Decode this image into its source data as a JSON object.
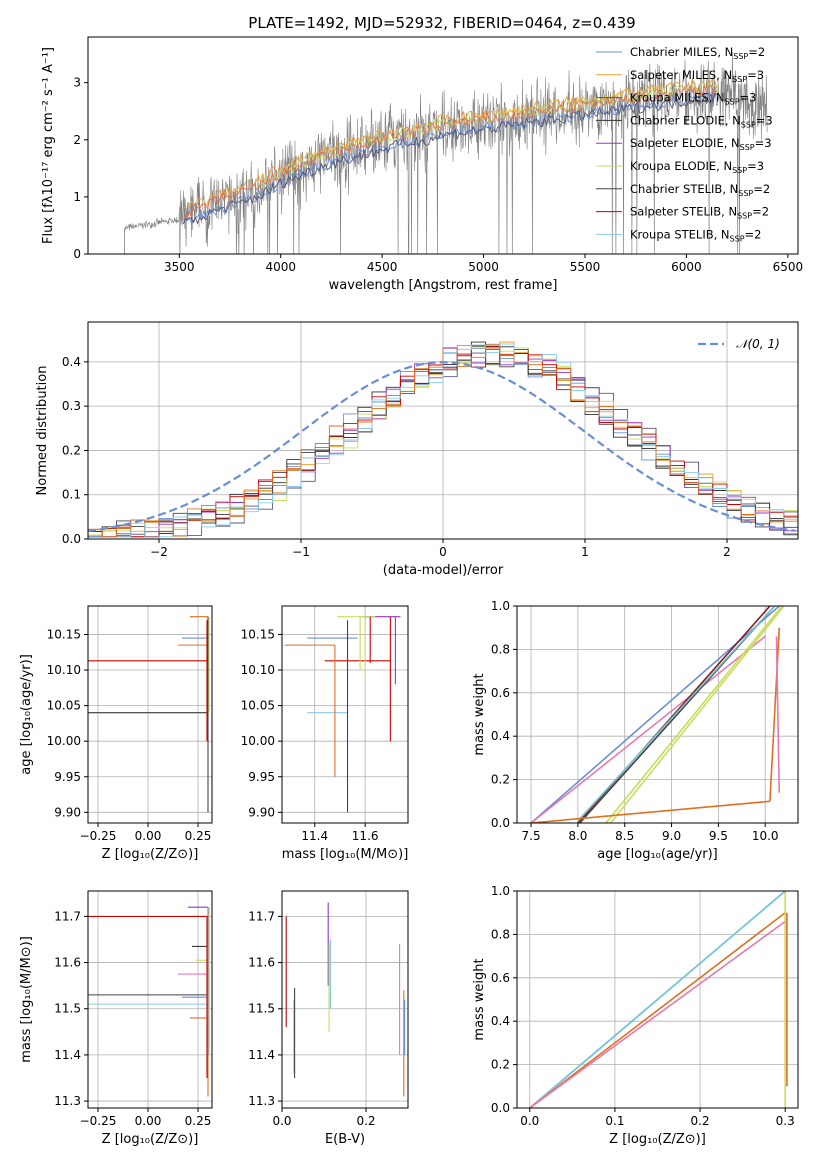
{
  "title": "PLATE=1492, MJD=52932, FIBERID=0464, z=0.439",
  "colors": {
    "chab_miles": "#6a8fd8",
    "salp_miles": "#f0a030",
    "krou_miles": "#555577",
    "chab_elodie": "#333333",
    "salp_elodie": "#9933cc",
    "krou_elodie": "#c8dc60",
    "chab_stelib": "#444444",
    "salp_stelib": "#cc0000",
    "krou_stelib": "#88ccee",
    "orange": "#e07020",
    "pink": "#e878b0",
    "green": "#c8dc50",
    "cyan": "#70c8d8",
    "darkred": "#8b1a1a",
    "data": "#808080"
  },
  "chart_data": [
    {
      "id": "spectrum",
      "type": "line",
      "title": "PLATE=1492, MJD=52932, FIBERID=0464, z=0.439",
      "xlabel": "wavelength [Angstrom, rest frame]",
      "ylabel_html": "Flux [fλ10⁻¹⁷ erg cm⁻² s⁻¹ A⁻¹]",
      "xlim": [
        3050,
        6550
      ],
      "ylim": [
        0,
        3.8
      ],
      "xticks": [
        3500,
        4000,
        4500,
        5000,
        5500,
        6000,
        6500
      ],
      "yticks": [
        0,
        1,
        2,
        3
      ],
      "legend": [
        {
          "name": "Chabrier MILES, N",
          "sub": "SSP",
          "post": "=2"
        },
        {
          "name": "Salpeter MILES, N",
          "sub": "SSP",
          "post": "=3"
        },
        {
          "name": "Kroupa MILES, N",
          "sub": "SSP",
          "post": "=3"
        },
        {
          "name": "Chabrier ELODIE, N",
          "sub": "SSP",
          "post": "=3"
        },
        {
          "name": "Salpeter ELODIE, N",
          "sub": "SSP",
          "post": "=3"
        },
        {
          "name": "Kroupa ELODIE, N",
          "sub": "SSP",
          "post": "=3"
        },
        {
          "name": "Chabrier STELIB, N",
          "sub": "SSP",
          "post": "=2"
        },
        {
          "name": "Salpeter STELIB, N",
          "sub": "SSP",
          "post": "=2"
        },
        {
          "name": "Kroupa STELIB, N",
          "sub": "SSP",
          "post": "=2"
        }
      ],
      "continuum": {
        "x": [
          3230,
          3400,
          3500,
          3600,
          3700,
          3800,
          3900,
          4000,
          4100,
          4200,
          4300,
          4400,
          4500,
          4600,
          4700,
          4800,
          4900,
          5000,
          5100,
          5200,
          5300,
          5400,
          5500,
          5600,
          5700,
          5800,
          5900,
          6000,
          6100,
          6200,
          6300,
          6400
        ],
        "y": [
          0.45,
          0.55,
          0.6,
          0.75,
          0.9,
          1.0,
          1.15,
          1.35,
          1.5,
          1.65,
          1.75,
          1.85,
          1.95,
          2.05,
          2.1,
          2.2,
          2.25,
          2.3,
          2.35,
          2.4,
          2.45,
          2.5,
          2.55,
          2.6,
          2.65,
          2.7,
          2.75,
          2.8,
          2.85,
          2.85,
          2.75,
          2.6
        ]
      }
    },
    {
      "id": "residuals",
      "type": "histogram",
      "xlabel": "(data-model)/error",
      "ylabel": "Normed distribution",
      "xlim": [
        -2.5,
        2.5
      ],
      "ylim": [
        0,
        0.49
      ],
      "xticks": [
        -2,
        -1,
        0,
        1,
        2
      ],
      "yticks": [
        0.0,
        0.1,
        0.2,
        0.3,
        0.4
      ],
      "legend": "𝒩(0, 1)",
      "gaussian": {
        "mean": 0,
        "sigma": 1
      }
    },
    {
      "id": "age_vs_Z",
      "type": "errorbar",
      "xlabel": "Z [log₁₀(Z/Z⊙)]",
      "ylabel": "age  [log₁₀(age/yr)]",
      "xlim": [
        -0.3,
        0.32
      ],
      "ylim": [
        9.885,
        10.19
      ],
      "xticks": [
        -0.25,
        0.0,
        0.25
      ],
      "yticks": [
        9.9,
        9.95,
        10.0,
        10.05,
        10.1,
        10.15
      ],
      "points": [
        {
          "x": 0.3,
          "y": 10.175,
          "xerr": [
            0.09,
            0.0
          ],
          "color": "orange"
        },
        {
          "x": 0.3,
          "y": 10.145,
          "xerr": [
            0.13,
            0.0
          ],
          "color": "chab_miles"
        },
        {
          "x": 0.3,
          "y": 10.135,
          "xerr": [
            0.15,
            0.0
          ],
          "color": "orange"
        },
        {
          "x": 0.3,
          "y": 10.113,
          "xerr": [
            0.6,
            0.0
          ],
          "color": "salp_stelib"
        },
        {
          "x": 0.3,
          "y": 10.04,
          "xerr": [
            0.6,
            0.0
          ],
          "color": "krou_stelib"
        },
        {
          "x": 0.3,
          "y": 10.04,
          "xerr": [
            0.6,
            0.0
          ],
          "color": "chab_stelib"
        }
      ]
    },
    {
      "id": "age_vs_mass",
      "type": "errorbar",
      "xlabel": "mass [log₁₀(M/M⊙)]",
      "ylabel": "",
      "xlim": [
        11.27,
        11.77
      ],
      "ylim": [
        9.885,
        10.19
      ],
      "xticks": [
        11.4,
        11.6
      ],
      "yticks": [
        9.9,
        9.95,
        10.0,
        10.05,
        10.1,
        10.15
      ],
      "points": [
        {
          "x": 11.53,
          "y": 10.145,
          "xerr": [
            0.16,
            0.04
          ],
          "color": "chab_miles"
        },
        {
          "x": 11.48,
          "y": 10.135,
          "xerr": [
            0.2,
            0.0
          ],
          "color": "orange"
        },
        {
          "x": 11.62,
          "y": 10.113,
          "xerr": [
            0.18,
            0.08
          ],
          "color": "salp_stelib"
        },
        {
          "x": 11.51,
          "y": 10.04,
          "xerr": [
            0.14,
            0.02
          ],
          "color": "krou_stelib"
        },
        {
          "x": 11.72,
          "y": 10.175,
          "xerr": [
            0.13,
            0.02
          ],
          "color": "salp_elodie"
        },
        {
          "x": 11.64,
          "y": 10.175,
          "xerr": [
            0.15,
            0.0
          ],
          "color": "krou_elodie"
        }
      ]
    },
    {
      "id": "weight_vs_age",
      "type": "line",
      "xlabel": "age  [log₁₀(age/yr)]",
      "ylabel": "mass weight",
      "xlim": [
        7.35,
        10.35
      ],
      "ylim": [
        0,
        1.0
      ],
      "xticks": [
        7.5,
        8.0,
        8.5,
        9.0,
        9.5,
        10.0
      ],
      "yticks": [
        0.0,
        0.2,
        0.4,
        0.6,
        0.8,
        1.0
      ]
    },
    {
      "id": "mass_vs_Z",
      "type": "errorbar",
      "xlabel": "Z [log₁₀(Z/Z⊙)]",
      "ylabel": "mass [log₁₀(M/M⊙)]",
      "xlim": [
        -0.3,
        0.32
      ],
      "ylim": [
        11.285,
        11.755
      ],
      "xticks": [
        -0.25,
        0.0,
        0.25
      ],
      "yticks": [
        11.3,
        11.4,
        11.5,
        11.6,
        11.7
      ]
    },
    {
      "id": "mass_vs_EBV",
      "type": "errorbar",
      "xlabel": "E(B-V)",
      "ylabel": "",
      "xlim": [
        0.0,
        0.3
      ],
      "ylim": [
        11.285,
        11.755
      ],
      "xticks": [
        0.0,
        0.2
      ],
      "yticks": [
        11.3,
        11.4,
        11.5,
        11.6,
        11.7
      ]
    },
    {
      "id": "weight_vs_Z",
      "type": "line",
      "xlabel": "Z [log₁₀(Z/Z⊙)]",
      "ylabel": "mass weight",
      "xlim": [
        -0.015,
        0.315
      ],
      "ylim": [
        0,
        1.0
      ],
      "xticks": [
        0.0,
        0.1,
        0.2,
        0.3
      ],
      "yticks": [
        0.0,
        0.2,
        0.4,
        0.6,
        0.8,
        1.0
      ]
    }
  ]
}
